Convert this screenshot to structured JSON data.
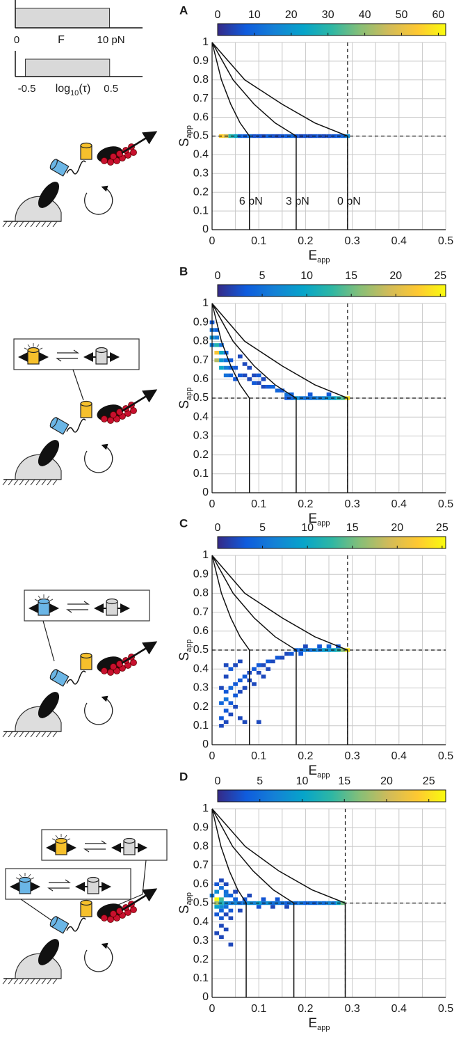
{
  "chart_data": [
    {
      "type": "range",
      "label": "F",
      "range": [
        0,
        10
      ],
      "xlim": [
        0,
        13.5
      ],
      "xticks": [
        0,
        {
          "value": 10,
          "label": "10 pN"
        }
      ]
    },
    {
      "type": "range",
      "label": "log",
      "label_sub": "10",
      "label_tail": "(τ)",
      "range": [
        -0.5,
        0.5
      ],
      "xlim": [
        -0.62,
        0.89
      ],
      "xticks": [
        -0.5,
        0.5
      ]
    },
    {
      "type": "heatmap",
      "panel": "A",
      "clim": [
        0,
        62
      ],
      "cticks": [
        0,
        10,
        20,
        30,
        40,
        50,
        60
      ],
      "colormap": [
        "#352a87",
        "#0f5cdd",
        "#1481d6",
        "#06a4ca",
        "#2eb7a4",
        "#87bf77",
        "#d1bb59",
        "#fec832",
        "#f9fb0e"
      ],
      "xlim": [
        0,
        0.5
      ],
      "ylim": [
        0,
        1
      ],
      "xticks": [
        0,
        0.1,
        0.2,
        0.3,
        0.4,
        0.5
      ],
      "yticks": [
        0,
        0.1,
        0.2,
        0.3,
        0.4,
        0.5,
        0.6,
        0.7,
        0.8,
        0.9,
        1
      ],
      "xminor": [
        0.05,
        0.15,
        0.25,
        0.35,
        0.45
      ],
      "grid": true,
      "xlabel": "E",
      "xlabel_sub": "app",
      "ylabel": "S",
      "ylabel_sub": "app",
      "ref_x": 0.29,
      "ref_y": 0.5,
      "bin_width": 0.01,
      "bin_height": 0.02,
      "x": [
        0.02,
        0.03,
        0.04,
        0.05,
        0.06,
        0.07,
        0.08,
        0.09,
        0.1,
        0.11,
        0.12,
        0.13,
        0.14,
        0.15,
        0.16,
        0.17,
        0.18,
        0.19,
        0.2,
        0.21,
        0.22,
        0.23,
        0.24,
        0.25,
        0.26,
        0.27,
        0.28,
        0.29
      ],
      "y": [
        0.5,
        0.5,
        0.5,
        0.5,
        0.5,
        0.5,
        0.5,
        0.5,
        0.5,
        0.5,
        0.5,
        0.5,
        0.5,
        0.5,
        0.5,
        0.5,
        0.5,
        0.5,
        0.5,
        0.5,
        0.5,
        0.5,
        0.5,
        0.5,
        0.5,
        0.5,
        0.5,
        0.5
      ],
      "values": [
        55,
        48,
        30,
        25,
        10,
        8,
        12,
        6,
        7,
        5,
        9,
        6,
        5,
        7,
        8,
        10,
        7,
        5,
        6,
        5,
        7,
        6,
        5,
        6,
        7,
        8,
        10,
        18
      ],
      "curves": [
        {
          "name": "6 pN",
          "x": [
            0,
            0.02,
            0.04,
            0.06,
            0.08,
            0.08
          ],
          "y": [
            1,
            0.8,
            0.67,
            0.57,
            0.5,
            0
          ]
        },
        {
          "name": "3 pN",
          "x": [
            0,
            0.045,
            0.09,
            0.135,
            0.18,
            0.18
          ],
          "y": [
            1,
            0.8,
            0.67,
            0.57,
            0.5,
            0
          ]
        },
        {
          "name": "0 pN",
          "x": [
            0,
            0.07,
            0.15,
            0.22,
            0.29,
            0.29
          ],
          "y": [
            1,
            0.8,
            0.67,
            0.57,
            0.5,
            0
          ]
        }
      ]
    },
    {
      "type": "heatmap",
      "panel": "B",
      "clim": [
        0,
        25.6
      ],
      "cticks": [
        0,
        5,
        10,
        15,
        20,
        25
      ],
      "colormap": [
        "#352a87",
        "#0f5cdd",
        "#1481d6",
        "#06a4ca",
        "#2eb7a4",
        "#87bf77",
        "#d1bb59",
        "#fec832",
        "#f9fb0e"
      ],
      "xlim": [
        0,
        0.5
      ],
      "ylim": [
        0,
        1
      ],
      "xticks": [
        0,
        0.1,
        0.2,
        0.3,
        0.4,
        0.5
      ],
      "yticks": [
        0,
        0.1,
        0.2,
        0.3,
        0.4,
        0.5,
        0.6,
        0.7,
        0.8,
        0.9,
        1
      ],
      "xminor": [
        0.05,
        0.15,
        0.25,
        0.35,
        0.45
      ],
      "grid": true,
      "xlabel": "E",
      "xlabel_sub": "app",
      "ylabel": "S",
      "ylabel_sub": "app",
      "ref_x": 0.29,
      "ref_y": 0.5,
      "bin_width": 0.01,
      "bin_height": 0.02,
      "x": [
        0,
        0,
        0.01,
        0,
        0.01,
        0.01,
        0.02,
        0,
        0.01,
        0.02,
        0.03,
        0.01,
        0.02,
        0.03,
        0.04,
        0.02,
        0.03,
        0.04,
        0.05,
        0.03,
        0.04,
        0.06,
        0.07,
        0.05,
        0.08,
        0.09,
        0.1,
        0.06,
        0.07,
        0.08,
        0.1,
        0.11,
        0.12,
        0.13,
        0.14,
        0.15,
        0.16,
        0.17,
        0.18,
        0.19,
        0.2,
        0.22,
        0.24,
        0.26,
        0.28,
        0.29,
        0.21,
        0.25,
        0.27,
        0.23,
        0.25,
        0.21,
        0.17,
        0.16,
        0.11,
        0.09
      ],
      "y": [
        0.9,
        0.86,
        0.86,
        0.82,
        0.82,
        0.78,
        0.78,
        0.78,
        0.74,
        0.74,
        0.74,
        0.7,
        0.7,
        0.7,
        0.7,
        0.66,
        0.66,
        0.66,
        0.66,
        0.62,
        0.62,
        0.62,
        0.62,
        0.6,
        0.6,
        0.58,
        0.58,
        0.72,
        0.68,
        0.66,
        0.62,
        0.6,
        0.56,
        0.56,
        0.54,
        0.54,
        0.52,
        0.52,
        0.5,
        0.5,
        0.5,
        0.5,
        0.5,
        0.5,
        0.5,
        0.5,
        0.52,
        0.52,
        0.5,
        0.5,
        0.5,
        0.5,
        0.5,
        0.5,
        0.56,
        0.62
      ],
      "values": [
        3,
        5,
        4,
        8,
        6,
        12,
        5,
        6,
        22,
        10,
        4,
        18,
        8,
        5,
        3,
        10,
        6,
        4,
        3,
        5,
        4,
        3,
        2,
        3,
        2,
        3,
        2,
        2,
        2,
        2,
        3,
        2,
        3,
        4,
        4,
        3,
        5,
        4,
        8,
        6,
        5,
        6,
        7,
        9,
        14,
        24,
        3,
        3,
        12,
        6,
        8,
        5,
        4,
        3,
        2,
        2
      ],
      "curves": [
        {
          "x": [
            0,
            0.02,
            0.04,
            0.06,
            0.08,
            0.08
          ],
          "y": [
            1,
            0.8,
            0.67,
            0.57,
            0.5,
            0
          ]
        },
        {
          "x": [
            0,
            0.045,
            0.09,
            0.135,
            0.18,
            0.18
          ],
          "y": [
            1,
            0.8,
            0.67,
            0.57,
            0.5,
            0
          ]
        },
        {
          "x": [
            0,
            0.07,
            0.15,
            0.22,
            0.29,
            0.29
          ],
          "y": [
            1,
            0.8,
            0.67,
            0.57,
            0.5,
            0
          ]
        }
      ]
    },
    {
      "type": "heatmap",
      "panel": "C",
      "clim": [
        0,
        25.4
      ],
      "cticks": [
        0,
        5,
        10,
        15,
        20,
        25
      ],
      "colormap": [
        "#352a87",
        "#0f5cdd",
        "#1481d6",
        "#06a4ca",
        "#2eb7a4",
        "#87bf77",
        "#d1bb59",
        "#fec832",
        "#f9fb0e"
      ],
      "xlim": [
        0,
        0.5
      ],
      "ylim": [
        0,
        1
      ],
      "xticks": [
        0,
        0.1,
        0.2,
        0.3,
        0.4,
        0.5
      ],
      "yticks": [
        0,
        0.1,
        0.2,
        0.3,
        0.4,
        0.5,
        0.6,
        0.7,
        0.8,
        0.9,
        1
      ],
      "xminor": [
        0.05,
        0.15,
        0.25,
        0.35,
        0.45
      ],
      "grid": true,
      "xlabel": "E",
      "xlabel_sub": "app",
      "ylabel": "S",
      "ylabel_sub": "app",
      "ref_x": 0.29,
      "ref_y": 0.5,
      "bin_width": 0.01,
      "bin_height": 0.02,
      "x": [
        0.29,
        0.28,
        0.27,
        0.26,
        0.25,
        0.24,
        0.23,
        0.22,
        0.21,
        0.2,
        0.19,
        0.18,
        0.27,
        0.25,
        0.23,
        0.2,
        0.17,
        0.16,
        0.19,
        0.15,
        0.14,
        0.13,
        0.12,
        0.11,
        0.1,
        0.12,
        0.09,
        0.1,
        0.08,
        0.11,
        0.07,
        0.08,
        0.06,
        0.09,
        0.05,
        0.07,
        0.04,
        0.06,
        0.03,
        0.05,
        0.03,
        0.04,
        0.02,
        0.05,
        0.03,
        0.04,
        0.02,
        0.06,
        0.03,
        0.02,
        0.07,
        0.1,
        0.06,
        0.04,
        0.05,
        0.03,
        0.02,
        0.03
      ],
      "y": [
        0.5,
        0.5,
        0.5,
        0.5,
        0.5,
        0.5,
        0.5,
        0.5,
        0.5,
        0.5,
        0.5,
        0.5,
        0.52,
        0.52,
        0.52,
        0.52,
        0.48,
        0.48,
        0.48,
        0.46,
        0.46,
        0.44,
        0.44,
        0.42,
        0.42,
        0.4,
        0.4,
        0.38,
        0.38,
        0.36,
        0.36,
        0.34,
        0.34,
        0.32,
        0.32,
        0.3,
        0.3,
        0.28,
        0.28,
        0.26,
        0.24,
        0.22,
        0.22,
        0.2,
        0.18,
        0.16,
        0.14,
        0.14,
        0.12,
        0.1,
        0.12,
        0.12,
        0.44,
        0.4,
        0.42,
        0.36,
        0.3,
        0.42
      ],
      "values": [
        24,
        16,
        12,
        10,
        8,
        9,
        6,
        7,
        5,
        6,
        4,
        4,
        3,
        4,
        3,
        2,
        3,
        2,
        3,
        2,
        3,
        2,
        3,
        2,
        3,
        2,
        3,
        2,
        2,
        2,
        3,
        2,
        3,
        2,
        3,
        2,
        4,
        2,
        3,
        3,
        5,
        3,
        4,
        2,
        3,
        2,
        3,
        2,
        2,
        2,
        2,
        2,
        2,
        3,
        2,
        2,
        2,
        2
      ],
      "curves": [
        {
          "x": [
            0,
            0.02,
            0.04,
            0.06,
            0.08,
            0.08
          ],
          "y": [
            1,
            0.8,
            0.67,
            0.57,
            0.5,
            0
          ]
        },
        {
          "x": [
            0,
            0.045,
            0.09,
            0.135,
            0.18,
            0.18
          ],
          "y": [
            1,
            0.8,
            0.67,
            0.57,
            0.5,
            0
          ]
        },
        {
          "x": [
            0,
            0.07,
            0.15,
            0.22,
            0.29,
            0.29
          ],
          "y": [
            1,
            0.8,
            0.67,
            0.57,
            0.5,
            0
          ]
        }
      ]
    },
    {
      "type": "heatmap",
      "panel": "D",
      "clim": [
        0,
        27
      ],
      "cticks": [
        0,
        5,
        10,
        15,
        20,
        25
      ],
      "colormap": [
        "#352a87",
        "#0f5cdd",
        "#1481d6",
        "#06a4ca",
        "#2eb7a4",
        "#87bf77",
        "#d1bb59",
        "#fec832",
        "#f9fb0e"
      ],
      "xlim": [
        0,
        0.5
      ],
      "ylim": [
        0,
        1
      ],
      "xticks": [
        0,
        0.1,
        0.2,
        0.3,
        0.4,
        0.5
      ],
      "yticks": [
        0,
        0.1,
        0.2,
        0.3,
        0.4,
        0.5,
        0.6,
        0.7,
        0.8,
        0.9,
        1
      ],
      "xminor": [
        0.05,
        0.15,
        0.25,
        0.35,
        0.45
      ],
      "grid": true,
      "xlabel": "E",
      "xlabel_sub": "app",
      "ylabel": "S",
      "ylabel_sub": "app",
      "ref_x": 0.285,
      "ref_y": 0.5,
      "bin_width": 0.01,
      "bin_height": 0.02,
      "x": [
        0.01,
        0.01,
        0.02,
        0.02,
        0,
        0.01,
        0.02,
        0.01,
        0.03,
        0.02,
        0.03,
        0.03,
        0.04,
        0.03,
        0.04,
        0.05,
        0.06,
        0.01,
        0.02,
        0.03,
        0.04,
        0.02,
        0.01,
        0.03,
        0.02,
        0.04,
        0.02,
        0.03,
        0.01,
        0.02,
        0.04,
        0.05,
        0.07,
        0.07,
        0.08,
        0.09,
        0.1,
        0.11,
        0.12,
        0.13,
        0.14,
        0.15,
        0.16,
        0.17,
        0.18,
        0.19,
        0.2,
        0.21,
        0.22,
        0.23,
        0.24,
        0.25,
        0.26,
        0.27,
        0.28,
        0.11,
        0.14,
        0.1,
        0.13,
        0.06,
        0.08,
        0.05,
        0.16
      ],
      "y": [
        0.52,
        0.5,
        0.52,
        0.5,
        0.54,
        0.56,
        0.58,
        0.6,
        0.6,
        0.62,
        0.56,
        0.54,
        0.54,
        0.5,
        0.5,
        0.5,
        0.5,
        0.48,
        0.48,
        0.48,
        0.46,
        0.46,
        0.44,
        0.44,
        0.42,
        0.42,
        0.38,
        0.36,
        0.34,
        0.32,
        0.28,
        0.52,
        0.52,
        0.5,
        0.5,
        0.5,
        0.5,
        0.5,
        0.5,
        0.5,
        0.5,
        0.5,
        0.5,
        0.5,
        0.5,
        0.5,
        0.5,
        0.5,
        0.5,
        0.5,
        0.5,
        0.5,
        0.5,
        0.5,
        0.5,
        0.52,
        0.52,
        0.48,
        0.48,
        0.46,
        0.54,
        0.56,
        0.48
      ],
      "values": [
        27,
        18,
        14,
        12,
        6,
        8,
        5,
        3,
        2,
        2,
        5,
        6,
        4,
        8,
        6,
        7,
        5,
        10,
        8,
        5,
        3,
        4,
        3,
        2,
        3,
        2,
        2,
        2,
        2,
        2,
        2,
        4,
        3,
        6,
        8,
        7,
        10,
        6,
        8,
        5,
        6,
        5,
        4,
        6,
        5,
        6,
        4,
        5,
        4,
        6,
        5,
        7,
        6,
        10,
        16,
        3,
        3,
        3,
        2,
        2,
        2,
        2,
        2
      ],
      "curves": [
        {
          "x": [
            0,
            0.019,
            0.037,
            0.055,
            0.073,
            0.073
          ],
          "y": [
            1,
            0.8,
            0.67,
            0.57,
            0.5,
            0
          ]
        },
        {
          "x": [
            0,
            0.044,
            0.088,
            0.131,
            0.175,
            0.175
          ],
          "y": [
            1,
            0.8,
            0.67,
            0.57,
            0.5,
            0
          ]
        },
        {
          "x": [
            0,
            0.071,
            0.143,
            0.214,
            0.285,
            0.285
          ],
          "y": [
            1,
            0.8,
            0.67,
            0.57,
            0.5,
            0
          ]
        }
      ]
    }
  ]
}
